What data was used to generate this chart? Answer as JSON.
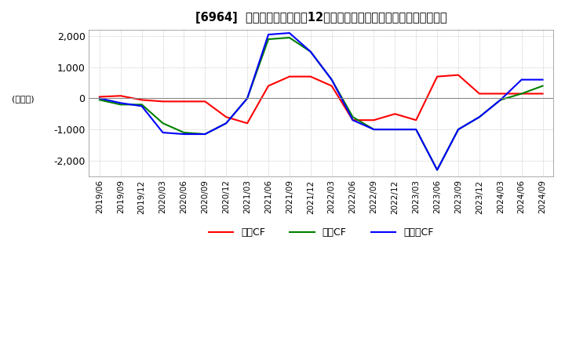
{
  "title": "[6964]  キャッシュフローの12か月移動合計の対前年同期増減額の推移",
  "ylabel": "(百万円)",
  "ylim": [
    -2500,
    2200
  ],
  "yticks": [
    -2000,
    -1000,
    0,
    1000,
    2000
  ],
  "legend_labels": [
    "営業CF",
    "投資CF",
    "フリーCF"
  ],
  "line_colors": [
    "#ff0000",
    "#008000",
    "#0000ff"
  ],
  "background_color": "#ffffff",
  "plot_bg_color": "#ffffff",
  "grid_color": "#aaaaaa",
  "dates": [
    "2019/06",
    "2019/09",
    "2019/12",
    "2020/03",
    "2020/06",
    "2020/09",
    "2020/12",
    "2021/03",
    "2021/06",
    "2021/09",
    "2021/12",
    "2022/03",
    "2022/06",
    "2022/09",
    "2022/12",
    "2023/03",
    "2023/06",
    "2023/09",
    "2023/12",
    "2024/03",
    "2024/06",
    "2024/09"
  ],
  "operating_cf": [
    50,
    80,
    -50,
    -100,
    -100,
    -100,
    -600,
    -800,
    400,
    700,
    700,
    400,
    -700,
    -700,
    -500,
    -700,
    700,
    750,
    150,
    150,
    150,
    150
  ],
  "investing_cf": [
    -50,
    -200,
    -200,
    -800,
    -1100,
    -1150,
    -800,
    0,
    1900,
    1950,
    1500,
    600,
    -600,
    -1000,
    -1000,
    -1000,
    -2300,
    -1000,
    -600,
    -50,
    150,
    400
  ],
  "free_cf": [
    0,
    -150,
    -250,
    -1100,
    -1150,
    -1150,
    -800,
    0,
    2050,
    2100,
    1500,
    600,
    -700,
    -1000,
    -1000,
    -1000,
    -2300,
    -1000,
    -600,
    -50,
    600,
    600
  ]
}
